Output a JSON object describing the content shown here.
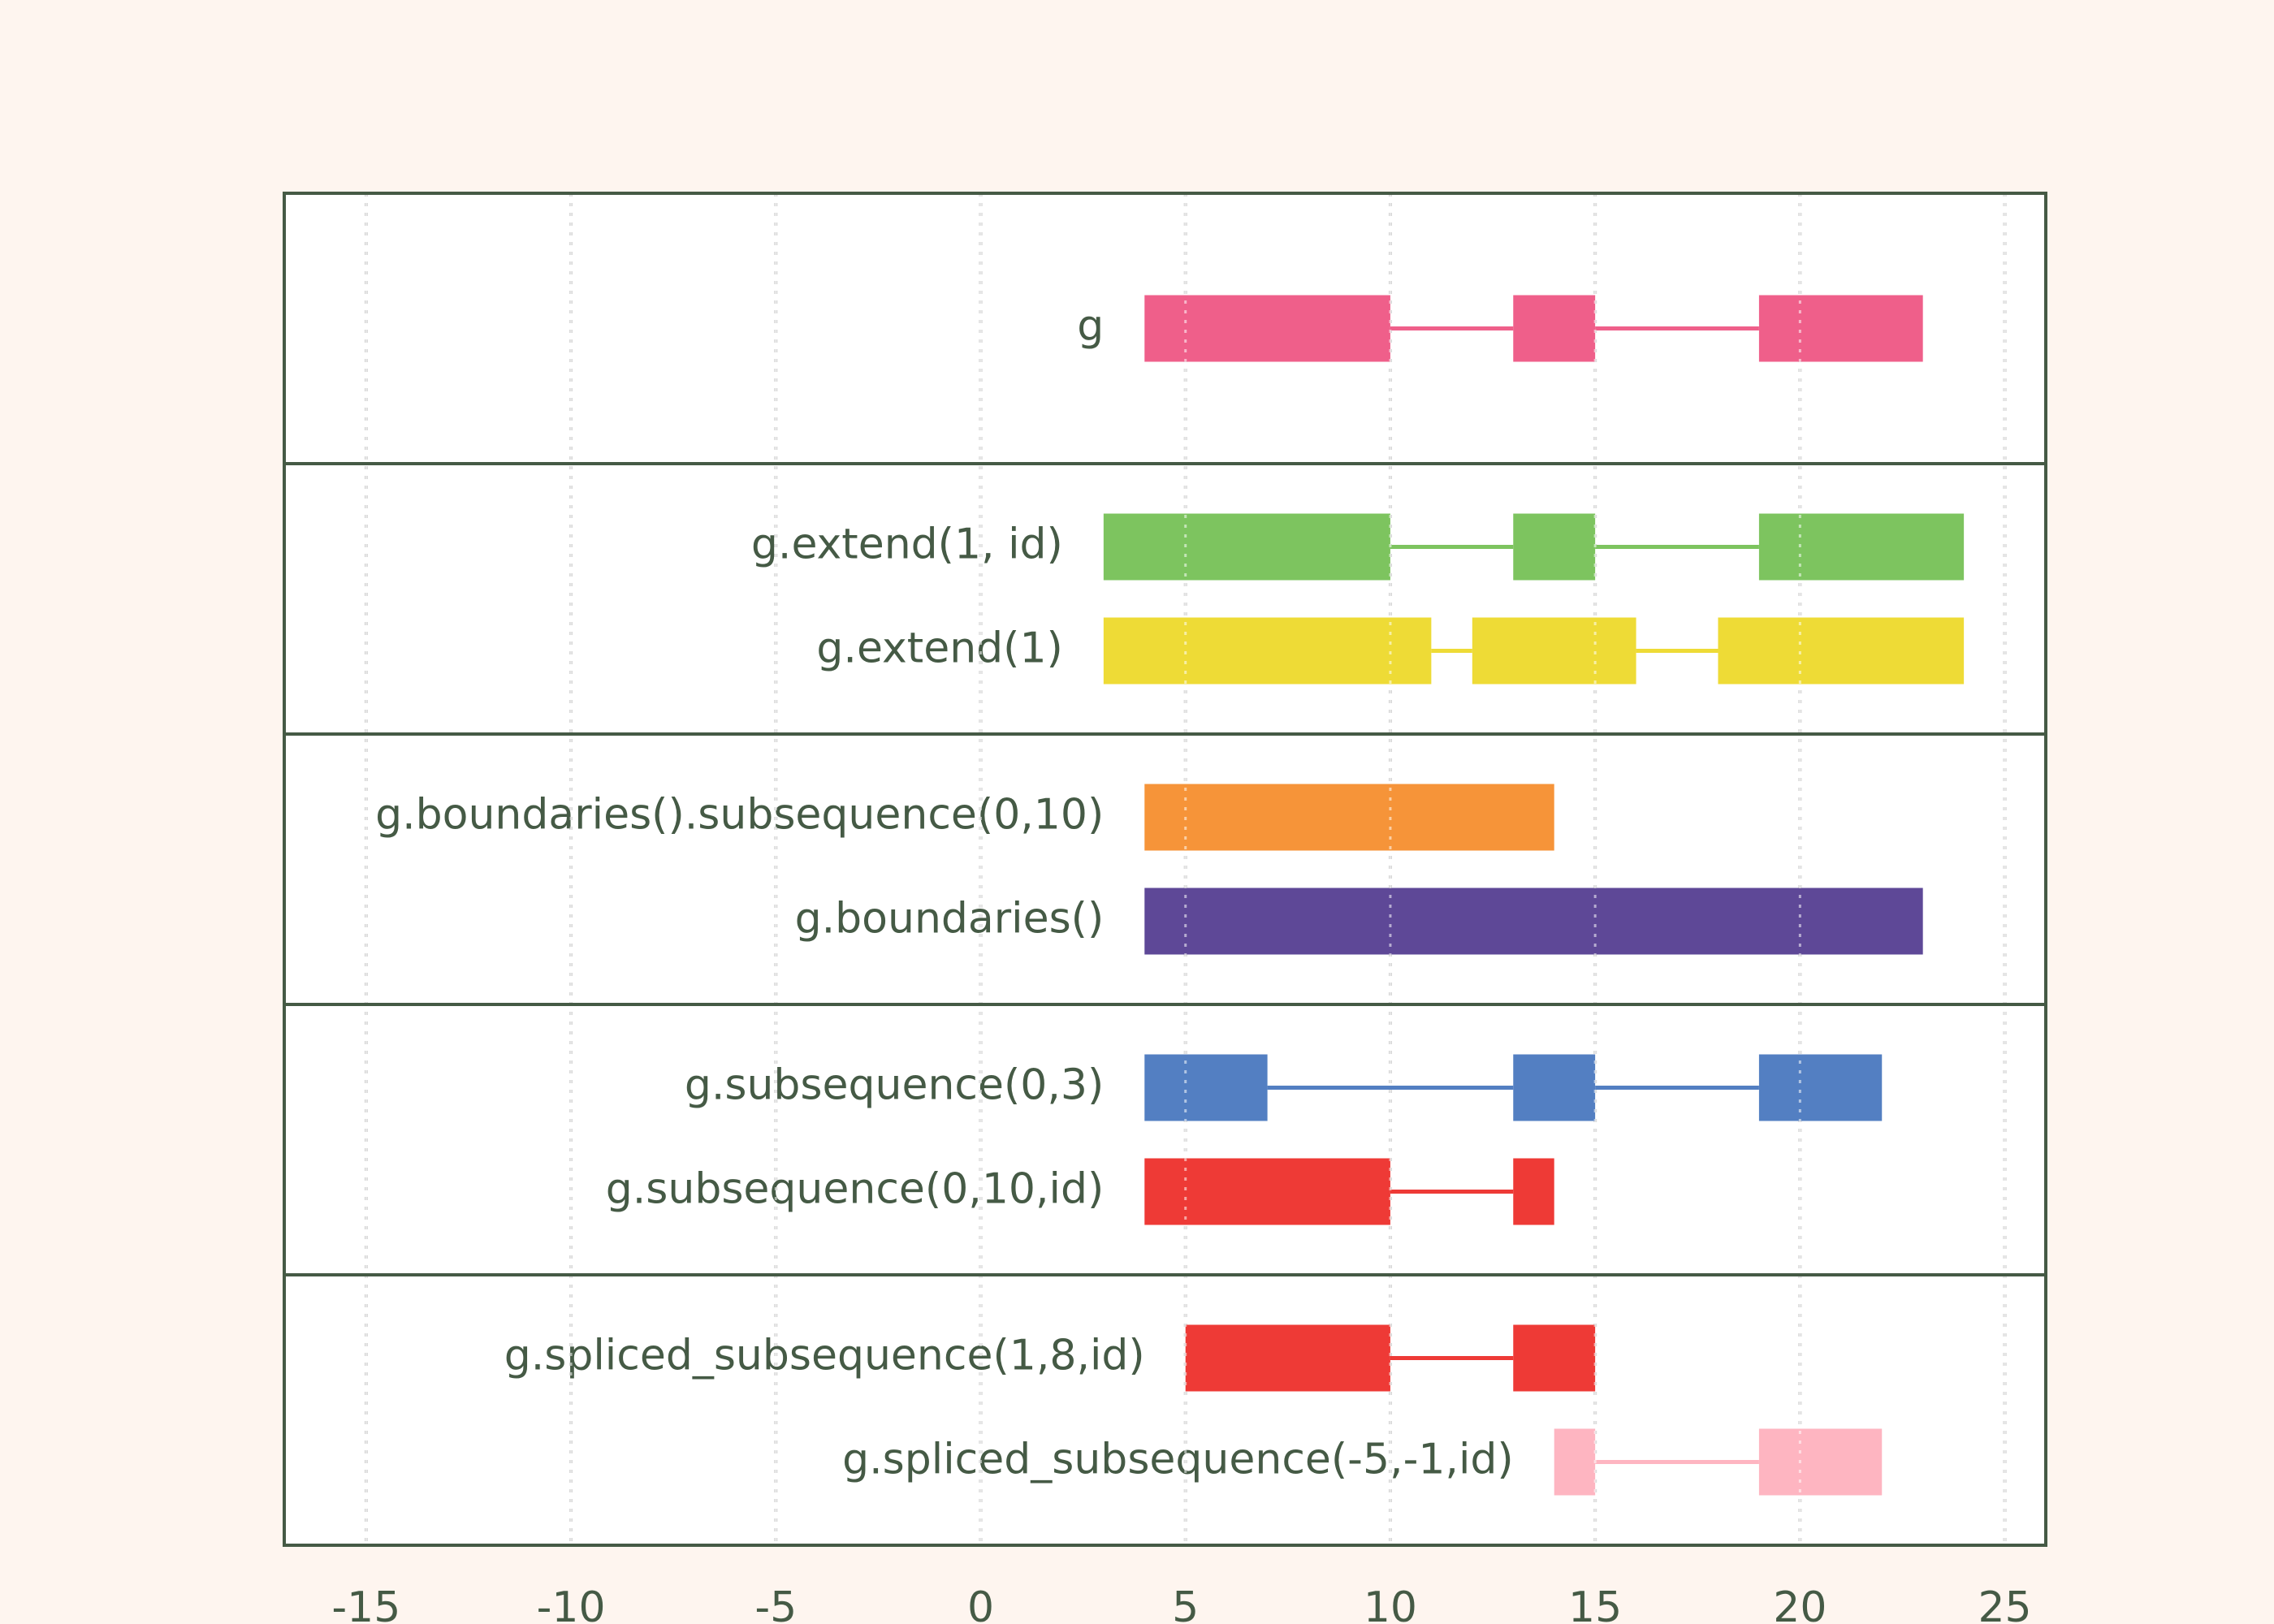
{
  "chart_data": {
    "type": "gantt-interval",
    "xlim": [
      -17,
      26
    ],
    "xticks": [
      -15,
      -10,
      -5,
      0,
      5,
      10,
      15,
      20,
      25
    ],
    "grid": "vertical-dotted",
    "colors": {
      "background": "#fef5ef",
      "frame": "#455a45",
      "grid": "#c8c8c8"
    },
    "groups": [
      {
        "rows": [
          {
            "label": "g",
            "color": "#ef5f8a",
            "exons": [
              [
                4,
                10
              ],
              [
                13,
                15
              ],
              [
                19,
                23
              ]
            ]
          }
        ]
      },
      {
        "rows": [
          {
            "label": "g.extend(1, id)",
            "color": "#7dc45f",
            "exons": [
              [
                3,
                10
              ],
              [
                13,
                15
              ],
              [
                19,
                24
              ]
            ]
          },
          {
            "label": "g.extend(1)",
            "color": "#eedb36",
            "exons": [
              [
                3,
                11
              ],
              [
                12,
                16
              ],
              [
                18,
                24
              ]
            ]
          }
        ]
      },
      {
        "rows": [
          {
            "label": "g.boundaries().subsequence(0,10)",
            "color": "#f69439",
            "exons": [
              [
                4,
                14
              ]
            ]
          },
          {
            "label": "g.boundaries()",
            "color": "#5e4897",
            "exons": [
              [
                4,
                23
              ]
            ]
          }
        ]
      },
      {
        "rows": [
          {
            "label": "g.subsequence(0,3)",
            "color": "#537fc2",
            "exons": [
              [
                4,
                7
              ],
              [
                13,
                15
              ],
              [
                19,
                22
              ]
            ]
          },
          {
            "label": "g.subsequence(0,10,id)",
            "color": "#ee3a36",
            "exons": [
              [
                4,
                10
              ],
              [
                13,
                14
              ]
            ]
          }
        ]
      },
      {
        "rows": [
          {
            "label": "g.spliced_subsequence(1,8,id)",
            "color": "#ee3a36",
            "exons": [
              [
                5,
                10
              ],
              [
                13,
                15
              ]
            ]
          },
          {
            "label": "g.spliced_subsequence(-5,-1,id)",
            "color": "#feb5c1",
            "exons": [
              [
                14,
                15
              ],
              [
                19,
                22
              ]
            ]
          }
        ]
      }
    ]
  }
}
